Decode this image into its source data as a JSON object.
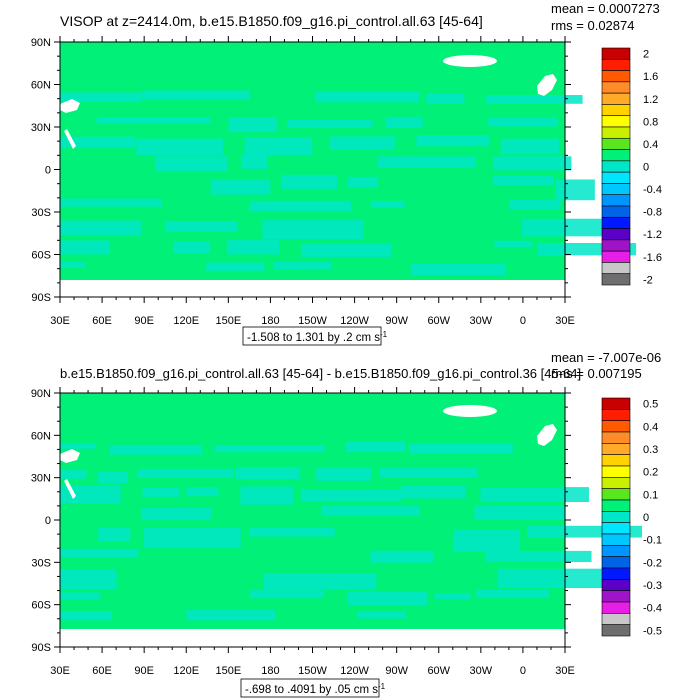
{
  "chart_data": [
    {
      "type": "heatmap",
      "title": "VISOP at z=2414.0m, b.e15.B1850.f09_g16.pi_control.all.63 [45-64]",
      "stats": {
        "mean": "mean = 0.0007273",
        "rms": "rms = 0.02874"
      },
      "lat_ticks": [
        "90N",
        "60N",
        "30N",
        "0",
        "30S",
        "60S",
        "90S"
      ],
      "lon_ticks": [
        "30E",
        "60E",
        "90E",
        "120E",
        "150E",
        "180",
        "150W",
        "120W",
        "90W",
        "60W",
        "30W",
        "0",
        "30E"
      ],
      "range_label": "-1.508 to 1.301 by .2 cm s",
      "range_sup": "-1",
      "colorbar_labels": [
        "2",
        "1.6",
        "1.2",
        "0.8",
        "0.4",
        "0",
        "-0.4",
        "-0.8",
        "-1.2",
        "-1.6",
        "-2"
      ],
      "contour_levels": [
        -2,
        -1.8,
        -1.6,
        -1.4,
        -1.2,
        -1,
        -0.8,
        -0.6,
        -0.4,
        -0.2,
        0,
        0.2,
        0.4,
        0.6,
        0.8,
        1,
        1.2,
        1.4,
        1.6,
        1.8,
        2
      ],
      "colors": [
        "#6e6e6e",
        "#c8c8c8",
        "#e61ee6",
        "#a014c8",
        "#5a00c8",
        "#0019ff",
        "#0064e6",
        "#0096ff",
        "#00c8ff",
        "#00e6ff",
        "#00e6c8",
        "#00f078",
        "#5ae61e",
        "#c8f000",
        "#ffff00",
        "#ffd200",
        "#ffaa28",
        "#ff8c28",
        "#ff5a00",
        "#ff1e00",
        "#c80000"
      ]
    },
    {
      "type": "heatmap",
      "title": "b.e15.B1850.f09_g16.pi_control.all.63 [45-64] - b.e15.B1850.f09_g16.pi_control.36 [45-64]",
      "stats": {
        "mean": "mean = -7.007e-06",
        "rms": "rms = 0.007195"
      },
      "lat_ticks": [
        "90N",
        "60N",
        "30N",
        "0",
        "30S",
        "60S",
        "90S"
      ],
      "lon_ticks": [
        "30E",
        "60E",
        "90E",
        "120E",
        "150E",
        "180",
        "150W",
        "120W",
        "90W",
        "60W",
        "30W",
        "0",
        "30E"
      ],
      "range_label": "-.698 to .4091 by .05 cm s",
      "range_sup": "-1",
      "colorbar_labels": [
        "0.5",
        "0.4",
        "0.3",
        "0.2",
        "0.1",
        "0",
        "-0.1",
        "-0.2",
        "-0.3",
        "-0.4",
        "-0.5"
      ],
      "contour_levels": [
        -0.5,
        -0.45,
        -0.4,
        -0.35,
        -0.3,
        -0.25,
        -0.2,
        -0.15,
        -0.1,
        -0.05,
        0,
        0.05,
        0.1,
        0.15,
        0.2,
        0.25,
        0.3,
        0.35,
        0.4,
        0.45,
        0.5
      ],
      "colors": [
        "#6e6e6e",
        "#c8c8c8",
        "#e61ee6",
        "#a014c8",
        "#5a00c8",
        "#0019ff",
        "#0064e6",
        "#0096ff",
        "#00c8ff",
        "#00e6ff",
        "#00e6c8",
        "#00f078",
        "#5ae61e",
        "#c8f000",
        "#ffff00",
        "#ffd200",
        "#ffaa28",
        "#ff8c28",
        "#ff5a00",
        "#ff1e00",
        "#c80000"
      ]
    }
  ]
}
